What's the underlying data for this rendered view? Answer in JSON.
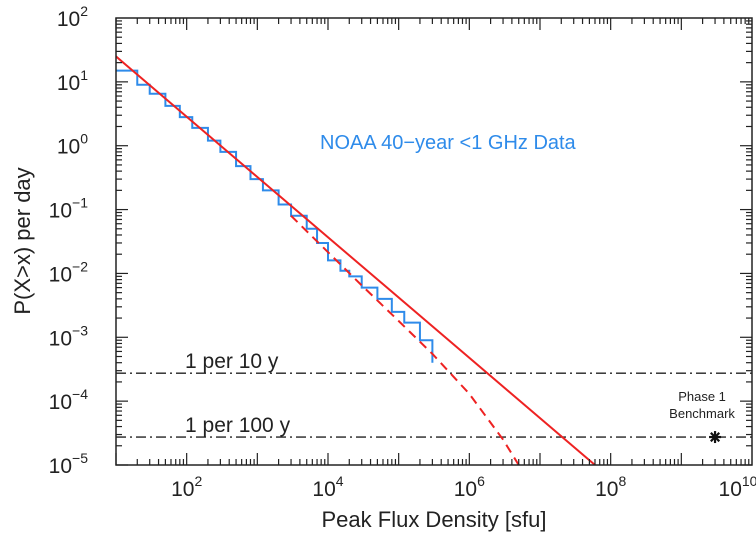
{
  "chart_data": {
    "type": "line",
    "xscale": "log",
    "yscale": "log",
    "xlim": [
      10,
      10000000000
    ],
    "ylim": [
      1e-05,
      100
    ],
    "xlabel": "Peak Flux Density [sfu]",
    "ylabel": "P(X>x) per day",
    "x_ticks": [
      {
        "base": "10",
        "exp": "2",
        "value": 100
      },
      {
        "base": "10",
        "exp": "4",
        "value": 10000
      },
      {
        "base": "10",
        "exp": "6",
        "value": 1000000
      },
      {
        "base": "10",
        "exp": "8",
        "value": 100000000
      },
      {
        "base": "10",
        "exp": "10",
        "value": 10000000000
      }
    ],
    "y_ticks": [
      {
        "base": "10",
        "exp": "2",
        "value": 100
      },
      {
        "base": "10",
        "exp": "1",
        "value": 10
      },
      {
        "base": "10",
        "exp": "0",
        "value": 1
      },
      {
        "base": "10",
        "exp": "−1",
        "value": 0.1
      },
      {
        "base": "10",
        "exp": "−2",
        "value": 0.01
      },
      {
        "base": "10",
        "exp": "−3",
        "value": 0.001
      },
      {
        "base": "10",
        "exp": "−4",
        "value": 0.0001
      },
      {
        "base": "10",
        "exp": "−5",
        "value": 1e-05
      }
    ],
    "annotation": {
      "text": "NOAA 40−year <1 GHz Data",
      "color": "#2e8bea"
    },
    "series": [
      {
        "style": "step",
        "color": "#2e8bea",
        "x": [
          10,
          20,
          30,
          50,
          80,
          120,
          200,
          300,
          500,
          800,
          1200,
          2000,
          3000,
          5000,
          7000,
          10000,
          15000,
          20000,
          30000,
          50000,
          80000,
          120000,
          200000,
          300000
        ],
        "y": [
          15,
          9,
          6.5,
          4.2,
          2.8,
          1.9,
          1.2,
          0.8,
          0.48,
          0.3,
          0.2,
          0.12,
          0.08,
          0.05,
          0.03,
          0.016,
          0.011,
          0.009,
          0.006,
          0.004,
          0.0025,
          0.0017,
          0.0009,
          0.0004
        ]
      },
      {
        "style": "solid",
        "color": "#ee2222",
        "x": [
          10,
          60000000
        ],
        "y": [
          25,
          1e-05
        ]
      },
      {
        "style": "dashed",
        "color": "#ee2222",
        "x": [
          3000,
          30000,
          100000,
          300000,
          1000000,
          3000000,
          5000000
        ],
        "y": [
          0.08,
          0.0065,
          0.0018,
          0.00055,
          0.00013,
          2.5e-05,
          1e-05
        ]
      }
    ],
    "reference_lines": [
      {
        "label": "1 per 10 y",
        "y": 0.000274
      },
      {
        "label": "1 per 100 y",
        "y": 2.74e-05
      }
    ],
    "points": [
      {
        "label_lines": [
          "Phase 1",
          "Benchmark"
        ],
        "x": 3000000000,
        "y": 2.74e-05,
        "marker": "asterisk"
      }
    ],
    "grid": false,
    "legend": "none"
  }
}
